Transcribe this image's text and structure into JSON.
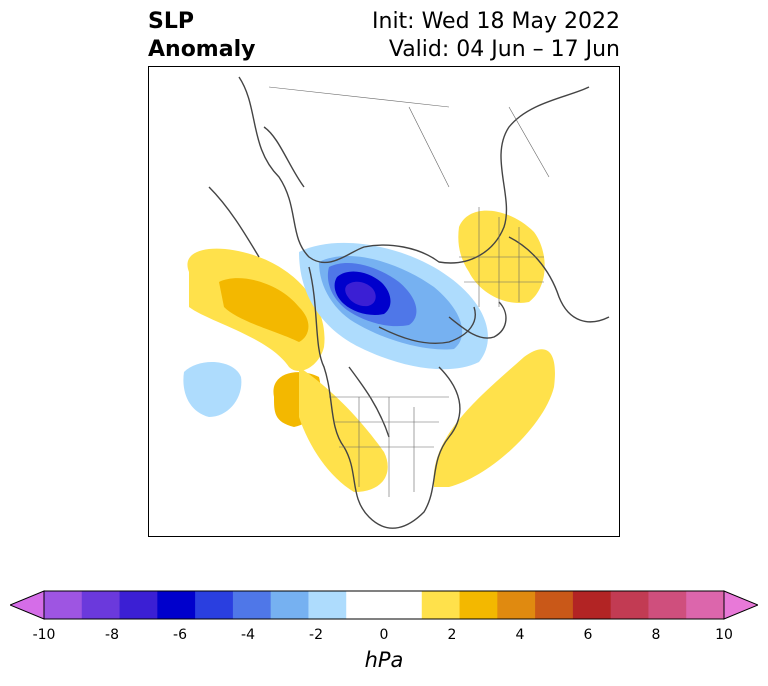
{
  "header": {
    "title_line1": "SLP",
    "title_line2": "Anomaly",
    "init": "Init: Wed 18 May 2022",
    "valid": "Valid: 04 Jun – 17 Jun"
  },
  "colorbar": {
    "unit": "hPa",
    "ticks": [
      "-10",
      "-8",
      "-6",
      "-4",
      "-2",
      "0",
      "2",
      "4",
      "6",
      "8",
      "10"
    ],
    "colors": [
      "#d56de8",
      "#9e55e2",
      "#6b39dc",
      "#3b1fd4",
      "#0000cc",
      "#2a3fe0",
      "#4f77e8",
      "#76b1f1",
      "#aedcfd",
      "#ffffff",
      "#ffffff",
      "#ffe14b",
      "#f3b800",
      "#e08a10",
      "#c95818",
      "#b22424",
      "#c23b53",
      "#cf4f7d",
      "#dc66ac",
      "#e879d8"
    ]
  }
}
